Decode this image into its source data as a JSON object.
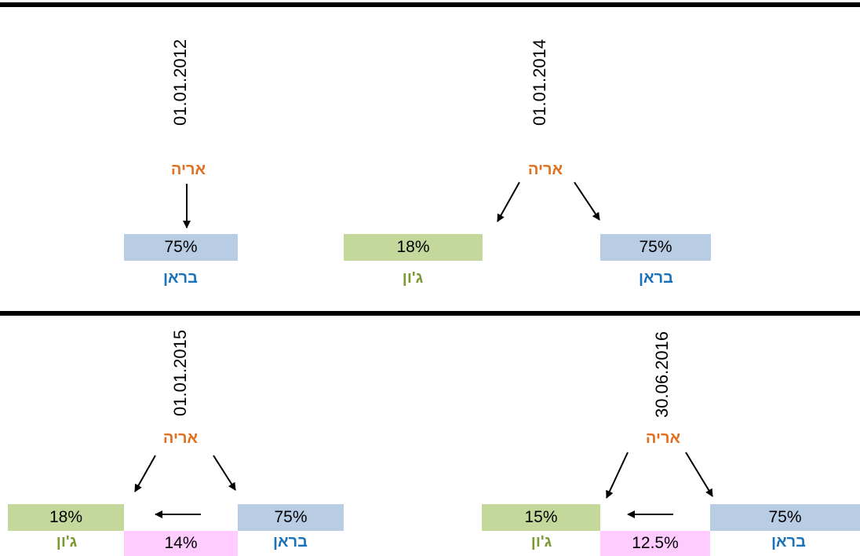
{
  "colors": {
    "divider": "#000000",
    "owner": "#e07020",
    "braun": "#1a72b8",
    "john": "#7a9a30",
    "box_braun": "#b8cce4",
    "box_john": "#c4d89c",
    "box_cross": "#ffccff"
  },
  "panels": [
    {
      "date": "01.01.2012",
      "owner": "אריה",
      "braun": {
        "name": "בראן",
        "pct": "75%"
      }
    },
    {
      "date": "01.01.2014",
      "owner": "אריה",
      "john": {
        "name": "ג'ון",
        "pct": "18%"
      },
      "braun": {
        "name": "בראן",
        "pct": "75%"
      }
    },
    {
      "date": "01.01.2015",
      "owner": "אריה",
      "john": {
        "name": "ג'ון",
        "pct": "18%"
      },
      "cross": {
        "pct": "14%"
      },
      "braun": {
        "name": "בראן",
        "pct": "75%"
      }
    },
    {
      "date": "30.06.2016",
      "owner": "אריה",
      "john": {
        "name": "ג'ון",
        "pct": "15%"
      },
      "cross": {
        "pct": "12.5%"
      },
      "braun": {
        "name": "בראן",
        "pct": "75%"
      }
    }
  ]
}
